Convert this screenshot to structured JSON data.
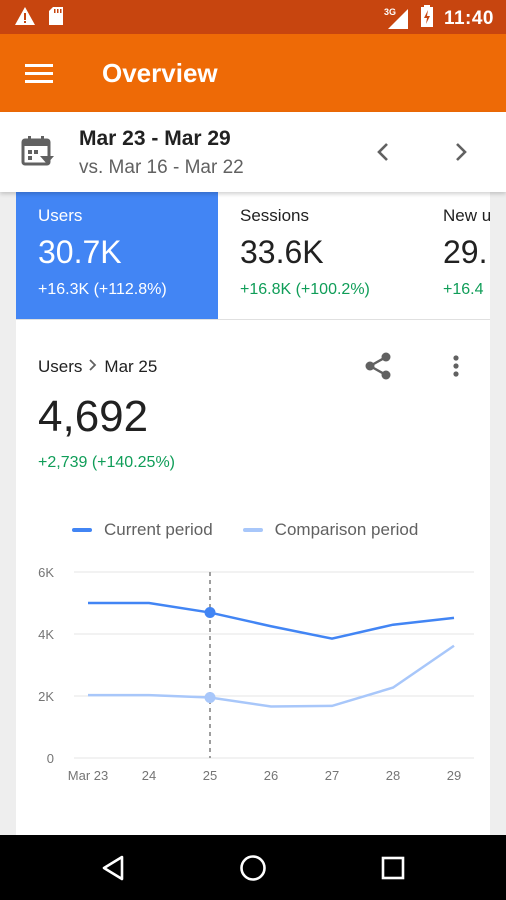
{
  "status_bar": {
    "time": "11:40",
    "network": "3G",
    "icons": [
      "warning-icon",
      "sd-card-icon",
      "signal-icon",
      "battery-charging-icon"
    ]
  },
  "app_bar": {
    "title": "Overview",
    "menu_icon": "menu-icon"
  },
  "date_range": {
    "range": "Mar 23 - Mar 29",
    "compare": "vs. Mar 16 - Mar 22"
  },
  "metrics": [
    {
      "label": "Users",
      "value": "30.7K",
      "delta": "+16.3K (+112.8%)"
    },
    {
      "label": "Sessions",
      "value": "33.6K",
      "delta": "+16.8K (+100.2%)"
    },
    {
      "label": "New u",
      "value": "29.",
      "delta": "+16.4"
    }
  ],
  "detail": {
    "metric": "Users",
    "date": "Mar 25",
    "value": "4,692",
    "delta": "+2,739 (+140.25%)"
  },
  "chart_data": {
    "type": "line",
    "categories": [
      "Mar 23",
      "24",
      "25",
      "26",
      "27",
      "28",
      "29"
    ],
    "series": [
      {
        "name": "Current period",
        "color": "#4285f4",
        "values": [
          5000,
          5000,
          4692,
          4250,
          3850,
          4300,
          4520
        ]
      },
      {
        "name": "Comparison period",
        "color": "#a8c7fa",
        "values": [
          2030,
          2030,
          1953,
          1660,
          1680,
          2270,
          3620
        ]
      }
    ],
    "ylim": [
      0,
      6000
    ],
    "yticks": [
      0,
      2000,
      4000,
      6000
    ],
    "ytick_labels": [
      "0",
      "2K",
      "4K",
      "6K"
    ],
    "highlight_index": 2,
    "grid": true,
    "legend": "top"
  },
  "nav_bar": {
    "icons": [
      "back-icon",
      "home-icon",
      "recents-icon"
    ]
  }
}
